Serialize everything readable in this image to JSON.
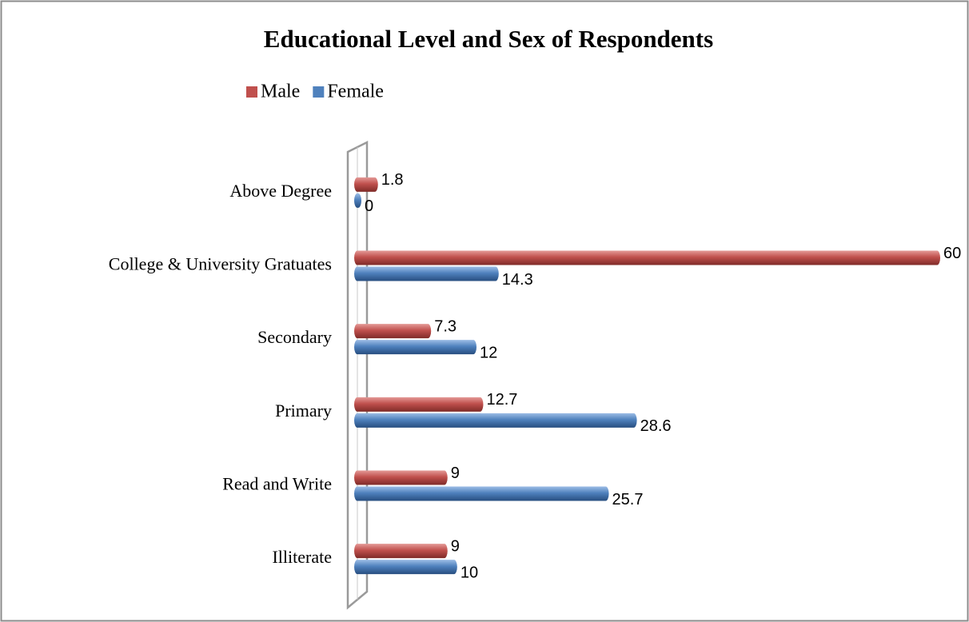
{
  "chart_data": {
    "type": "bar",
    "orientation": "horizontal",
    "title": "Educational Level and Sex of Respondents",
    "categories": [
      "Above Degree",
      "College & University Gratuates",
      "Secondary",
      "Primary",
      "Read and Write",
      "Illiterate"
    ],
    "series": [
      {
        "name": "Male",
        "color": "#c0504d",
        "values": [
          1.8,
          60,
          7.3,
          12.7,
          9,
          9
        ]
      },
      {
        "name": "Female",
        "color": "#4f81bd",
        "values": [
          0,
          14.3,
          12,
          28.6,
          25.7,
          10
        ]
      }
    ],
    "xlim": [
      0,
      60
    ],
    "legend": "top"
  }
}
